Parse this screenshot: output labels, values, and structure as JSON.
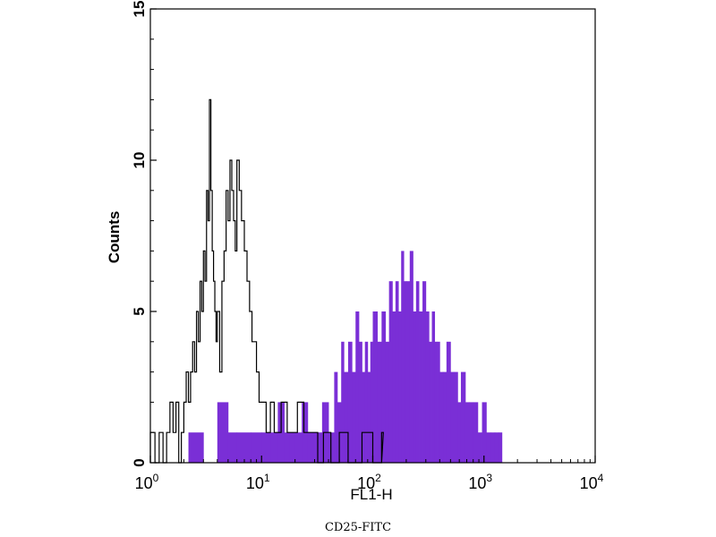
{
  "caption": "CD25-FITC",
  "chart_data": {
    "type": "histogram",
    "xlabel": "FL1-H",
    "ylabel": "Counts",
    "x_scale": "log",
    "xlim": [
      1,
      10000
    ],
    "ylim": [
      0,
      15
    ],
    "x_ticks": [
      {
        "base": "10",
        "exp": "0",
        "value": 1
      },
      {
        "base": "10",
        "exp": "1",
        "value": 10
      },
      {
        "base": "10",
        "exp": "2",
        "value": 100
      },
      {
        "base": "10",
        "exp": "3",
        "value": 1000
      },
      {
        "base": "10",
        "exp": "4",
        "value": 10000
      }
    ],
    "y_ticks": [
      "0",
      "5",
      "10",
      "15"
    ],
    "colors": {
      "filled_series": "#7a2fd6",
      "outline_series": "#000000"
    },
    "series": [
      {
        "style": "outline",
        "points": [
          [
            1.0,
            1
          ],
          [
            1.1,
            0
          ],
          [
            1.2,
            1
          ],
          [
            1.3,
            0
          ],
          [
            1.4,
            1
          ],
          [
            1.5,
            2
          ],
          [
            1.6,
            1
          ],
          [
            1.7,
            2
          ],
          [
            1.8,
            0
          ],
          [
            1.9,
            1
          ],
          [
            2.0,
            2
          ],
          [
            2.1,
            3
          ],
          [
            2.2,
            2
          ],
          [
            2.3,
            3
          ],
          [
            2.4,
            4
          ],
          [
            2.5,
            3
          ],
          [
            2.6,
            5
          ],
          [
            2.7,
            4
          ],
          [
            2.8,
            6
          ],
          [
            2.9,
            5
          ],
          [
            3.0,
            7
          ],
          [
            3.1,
            6
          ],
          [
            3.2,
            9
          ],
          [
            3.3,
            8
          ],
          [
            3.4,
            12
          ],
          [
            3.5,
            9
          ],
          [
            3.6,
            7
          ],
          [
            3.7,
            6
          ],
          [
            3.8,
            5
          ],
          [
            3.9,
            4
          ],
          [
            4.0,
            5
          ],
          [
            4.2,
            3
          ],
          [
            4.4,
            6
          ],
          [
            4.6,
            7
          ],
          [
            4.8,
            9
          ],
          [
            5.0,
            8
          ],
          [
            5.2,
            10
          ],
          [
            5.4,
            9
          ],
          [
            5.6,
            8
          ],
          [
            5.8,
            7
          ],
          [
            6.0,
            10
          ],
          [
            6.3,
            9
          ],
          [
            6.6,
            8
          ],
          [
            7.0,
            7
          ],
          [
            7.4,
            6
          ],
          [
            7.8,
            5
          ],
          [
            8.2,
            4
          ],
          [
            8.6,
            4
          ],
          [
            9.0,
            3
          ],
          [
            9.5,
            2
          ],
          [
            10,
            2
          ],
          [
            11,
            1
          ],
          [
            12,
            2
          ],
          [
            13,
            1
          ],
          [
            14,
            1
          ],
          [
            15,
            2
          ],
          [
            17,
            1
          ],
          [
            19,
            1
          ],
          [
            21,
            2
          ],
          [
            24,
            1
          ],
          [
            28,
            1
          ],
          [
            32,
            0
          ],
          [
            36,
            1
          ],
          [
            42,
            0
          ],
          [
            50,
            1
          ],
          [
            60,
            0
          ],
          [
            80,
            1
          ],
          [
            100,
            0
          ],
          [
            120,
            1
          ]
        ]
      },
      {
        "style": "filled",
        "points": [
          [
            1.8,
            0
          ],
          [
            2.2,
            1
          ],
          [
            3.0,
            0
          ],
          [
            4.0,
            2
          ],
          [
            5.0,
            1
          ],
          [
            6.0,
            1
          ],
          [
            8.0,
            1
          ],
          [
            10,
            1
          ],
          [
            12,
            1
          ],
          [
            14,
            2
          ],
          [
            16,
            1
          ],
          [
            18,
            1
          ],
          [
            20,
            1
          ],
          [
            23,
            2
          ],
          [
            26,
            1
          ],
          [
            30,
            1
          ],
          [
            35,
            2
          ],
          [
            40,
            1
          ],
          [
            45,
            3
          ],
          [
            48,
            2
          ],
          [
            52,
            4
          ],
          [
            55,
            3
          ],
          [
            60,
            4
          ],
          [
            65,
            3
          ],
          [
            70,
            5
          ],
          [
            75,
            4
          ],
          [
            80,
            3
          ],
          [
            85,
            4
          ],
          [
            90,
            3
          ],
          [
            95,
            4
          ],
          [
            100,
            5
          ],
          [
            110,
            4
          ],
          [
            120,
            5
          ],
          [
            130,
            4
          ],
          [
            140,
            6
          ],
          [
            150,
            5
          ],
          [
            160,
            6
          ],
          [
            170,
            5
          ],
          [
            180,
            7
          ],
          [
            190,
            6
          ],
          [
            200,
            6
          ],
          [
            215,
            7
          ],
          [
            230,
            5
          ],
          [
            245,
            6
          ],
          [
            260,
            5
          ],
          [
            280,
            6
          ],
          [
            300,
            5
          ],
          [
            320,
            4
          ],
          [
            340,
            5
          ],
          [
            360,
            4
          ],
          [
            380,
            4
          ],
          [
            400,
            3
          ],
          [
            430,
            3
          ],
          [
            460,
            4
          ],
          [
            500,
            3
          ],
          [
            540,
            3
          ],
          [
            580,
            2
          ],
          [
            620,
            3
          ],
          [
            680,
            2
          ],
          [
            740,
            2
          ],
          [
            800,
            2
          ],
          [
            880,
            1
          ],
          [
            960,
            2
          ],
          [
            1050,
            1
          ],
          [
            1150,
            1
          ],
          [
            1250,
            1
          ],
          [
            1350,
            1
          ],
          [
            1450,
            0
          ]
        ]
      }
    ]
  }
}
